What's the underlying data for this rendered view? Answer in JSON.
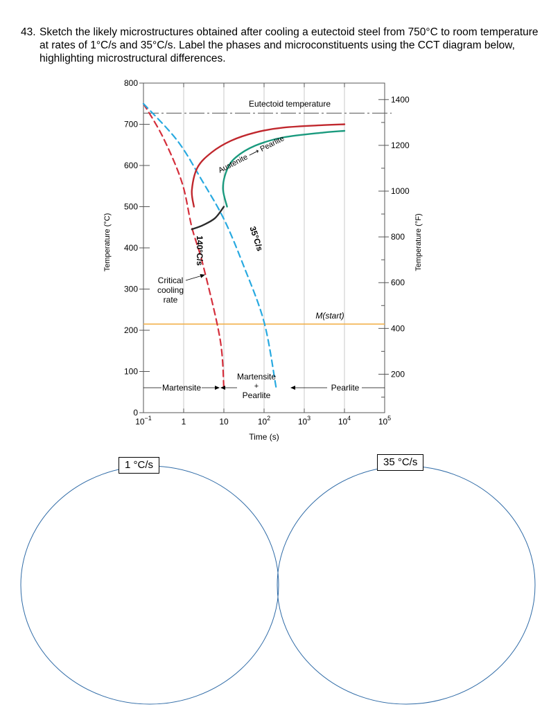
{
  "question": {
    "number": "43.",
    "text": "Sketch the likely microstructures obtained after cooling a eutectoid steel from 750°C to room temperature at rates of 1°C/s and 35°C/s. Label the phases and microconstituents using the CCT diagram below, highlighting microstructural differences."
  },
  "chart_data": {
    "type": "line",
    "xscale": "log",
    "xlabel": "Time (s)",
    "ylabel_left": "Temperature (°C)",
    "ylabel_right": "Temperature (°F)",
    "x_ticks": [
      "10",
      "1",
      "10",
      "10",
      "10",
      "10",
      "10"
    ],
    "x_tick_exponents": [
      "−1",
      "",
      "",
      "2",
      "3",
      "4",
      "5"
    ],
    "x_tick_values": [
      0.1,
      1,
      10,
      100,
      1000,
      10000,
      100000
    ],
    "y_ticks_left": [
      "800",
      "700",
      "600",
      "500",
      "400",
      "300",
      "200",
      "100",
      "0"
    ],
    "y_ticks_right": [
      "1400",
      "1200",
      "1000",
      "800",
      "600",
      "400",
      "200"
    ],
    "ylim_c": [
      0,
      800
    ],
    "xlim": [
      0.1,
      100000
    ],
    "grid": true,
    "series": [
      {
        "key": "red",
        "color": "#d42e3b",
        "x": [
          0.1,
          0.3,
          0.9,
          1.6,
          3,
          8,
          10
        ],
        "y": [
          750,
          670,
          560,
          450,
          360,
          180,
          60
        ]
      },
      {
        "key": "blue",
        "color": "#27a9e0",
        "x": [
          0.1,
          0.7,
          3,
          10,
          30,
          100,
          200
        ],
        "y": [
          750,
          660,
          560,
          470,
          360,
          220,
          60
        ]
      },
      {
        "key": "pearlite-start",
        "color": "#c0272d",
        "x": [
          1.8,
          1.6,
          2.2,
          5,
          15,
          60,
          300,
          3000,
          10000
        ],
        "y": [
          500,
          540,
          595,
          632,
          660,
          680,
          692,
          698,
          700
        ]
      },
      {
        "key": "pearlite-finish",
        "color": "#1a9a7e",
        "x": [
          12,
          9.5,
          12,
          20,
          60,
          300,
          3000,
          10000
        ],
        "y": [
          500,
          545,
          590,
          620,
          648,
          668,
          680,
          684
        ]
      },
      {
        "key": "transformation-stop",
        "color": "#2b2b2b",
        "x": [
          1.6,
          3,
          6,
          10
        ],
        "y": [
          445,
          455,
          472,
          500
        ]
      }
    ],
    "reference_lines": [
      {
        "key": "eutectoid",
        "y": 727,
        "color": "#666666"
      },
      {
        "key": "mstart",
        "y": 215,
        "color": "#f2b24e"
      }
    ],
    "annotations": {
      "eutectoid": "Eutectoid temperature",
      "austenite_pearlite": "Austenite ⟶ Pearlite",
      "rate_fast": "140°C/s",
      "rate_slow": "35°C/s",
      "critical": [
        "Critical",
        "cooling",
        "rate"
      ],
      "mstart": "M(start)",
      "martensite": "Martensite",
      "mix_top": "Martensite",
      "mix_plus": "+",
      "mix_bottom": "Pearlite",
      "pearlite": "Pearlite"
    }
  },
  "sketches": {
    "left_label": "1 °C/s",
    "right_label": "35 °C/s"
  }
}
